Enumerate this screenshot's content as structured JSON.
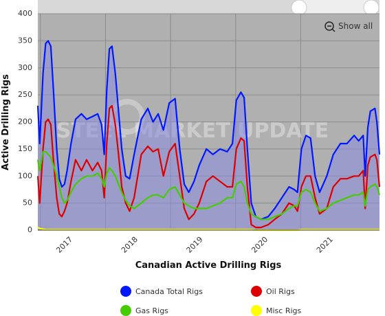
{
  "chart_data": {
    "type": "line",
    "xlabel": "Canadian Active Drilling Rigs",
    "ylabel": "Active Drilling Rigs",
    "watermark": "STEEL MARKET UPDATE",
    "button": "Show all",
    "xlim": [
      2016.96,
      2022.21
    ],
    "xticks": [
      2017,
      2018,
      2019,
      2020,
      2021
    ],
    "ylim": [
      0,
      400
    ],
    "yticks": [
      0,
      50,
      100,
      150,
      200,
      250,
      300,
      350,
      400
    ],
    "grid": true,
    "legend": "bottom",
    "area_series": 0,
    "x": [
      2016.96,
      2016.99,
      2017.04,
      2017.08,
      2017.12,
      2017.16,
      2017.2,
      2017.25,
      2017.29,
      2017.33,
      2017.37,
      2017.41,
      2017.47,
      2017.54,
      2017.63,
      2017.71,
      2017.8,
      2017.88,
      2017.94,
      2017.98,
      2018.02,
      2018.06,
      2018.1,
      2018.15,
      2018.2,
      2018.25,
      2018.31,
      2018.37,
      2018.44,
      2018.55,
      2018.65,
      2018.73,
      2018.81,
      2018.89,
      2018.98,
      2019.07,
      2019.14,
      2019.21,
      2019.28,
      2019.36,
      2019.44,
      2019.55,
      2019.65,
      2019.76,
      2019.87,
      2019.95,
      2020.01,
      2020.08,
      2020.13,
      2020.18,
      2020.24,
      2020.31,
      2020.39,
      2020.5,
      2020.6,
      2020.71,
      2020.82,
      2020.9,
      2020.95,
      2021.01,
      2021.08,
      2021.15,
      2021.22,
      2021.29,
      2021.4,
      2021.5,
      2021.61,
      2021.71,
      2021.82,
      2021.89,
      2021.96,
      2021.99,
      2022.03,
      2022.07,
      2022.14,
      2022.17,
      2022.21
    ],
    "series": [
      {
        "name": "Canada Total Rigs",
        "color": "#0018ff",
        "values": [
          230,
          160,
          290,
          345,
          350,
          340,
          260,
          150,
          95,
          80,
          85,
          110,
          160,
          205,
          215,
          205,
          210,
          215,
          195,
          140,
          260,
          335,
          340,
          290,
          220,
          150,
          100,
          95,
          140,
          205,
          225,
          200,
          215,
          185,
          235,
          243,
          150,
          85,
          70,
          90,
          120,
          150,
          140,
          150,
          145,
          160,
          240,
          255,
          245,
          150,
          50,
          25,
          20,
          25,
          40,
          60,
          80,
          75,
          70,
          150,
          175,
          170,
          100,
          70,
          100,
          140,
          160,
          160,
          175,
          165,
          175,
          100,
          190,
          220,
          225,
          200,
          140
        ]
      },
      {
        "name": "Oil Rigs",
        "color": "#dd0000",
        "values": [
          100,
          50,
          150,
          200,
          205,
          195,
          130,
          60,
          30,
          25,
          35,
          50,
          90,
          130,
          110,
          130,
          110,
          125,
          110,
          60,
          160,
          225,
          230,
          195,
          140,
          80,
          50,
          35,
          60,
          140,
          155,
          145,
          150,
          100,
          145,
          160,
          100,
          40,
          20,
          30,
          50,
          90,
          100,
          90,
          80,
          80,
          150,
          170,
          165,
          80,
          10,
          5,
          5,
          10,
          20,
          30,
          50,
          45,
          35,
          80,
          100,
          100,
          60,
          30,
          40,
          80,
          95,
          95,
          100,
          100,
          110,
          40,
          120,
          135,
          140,
          130,
          80
        ]
      },
      {
        "name": "Gas Rigs",
        "color": "#44cc00",
        "values": [
          130,
          110,
          145,
          145,
          140,
          135,
          120,
          100,
          80,
          60,
          50,
          55,
          70,
          85,
          95,
          100,
          100,
          105,
          95,
          80,
          105,
          115,
          110,
          100,
          85,
          70,
          55,
          45,
          40,
          50,
          60,
          65,
          65,
          60,
          75,
          80,
          65,
          50,
          45,
          40,
          40,
          40,
          45,
          50,
          60,
          60,
          85,
          90,
          80,
          50,
          30,
          25,
          20,
          20,
          25,
          30,
          40,
          45,
          45,
          70,
          75,
          70,
          50,
          35,
          40,
          50,
          55,
          60,
          65,
          65,
          70,
          45,
          75,
          80,
          85,
          80,
          65
        ]
      },
      {
        "name": "Misc Rigs",
        "color": "#ffff00",
        "values": [
          5,
          3,
          2,
          1,
          1,
          1,
          1,
          1,
          1,
          1,
          1,
          1,
          1,
          1,
          1,
          1,
          1,
          1,
          1,
          1,
          1,
          1,
          1,
          1,
          1,
          1,
          1,
          1,
          1,
          1,
          1,
          1,
          1,
          1,
          1,
          1,
          1,
          1,
          1,
          1,
          1,
          1,
          1,
          1,
          1,
          1,
          1,
          1,
          1,
          1,
          1,
          0,
          0,
          0,
          0,
          0,
          0,
          0,
          0,
          1,
          1,
          1,
          1,
          1,
          1,
          1,
          1,
          1,
          1,
          1,
          1,
          1,
          1,
          1,
          1,
          1,
          1
        ]
      }
    ]
  }
}
